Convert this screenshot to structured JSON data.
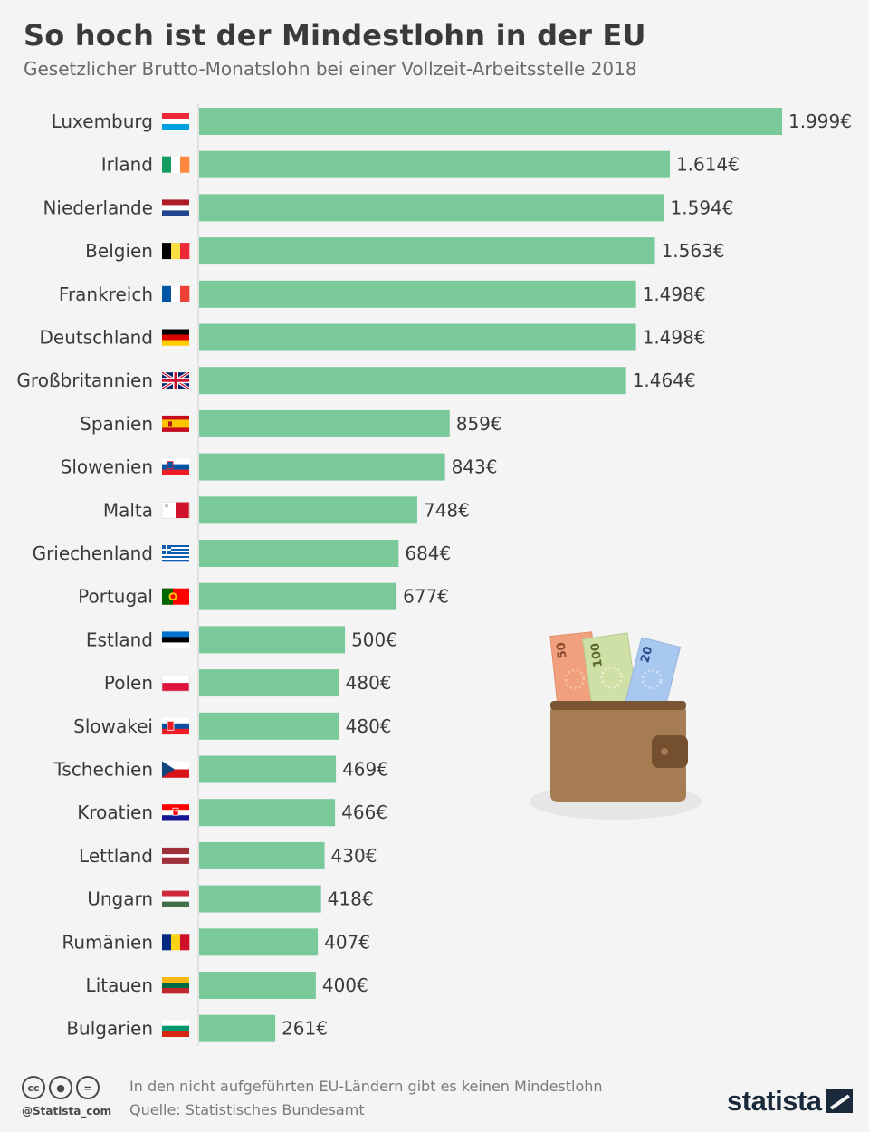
{
  "header": {
    "title": "So hoch ist der Mindestlohn in der EU",
    "subtitle": "Gesetzlicher Brutto-Monatslohn bei einer Vollzeit-Arbeitsstelle 2018"
  },
  "chart_data": {
    "type": "bar",
    "orientation": "horizontal",
    "title": "So hoch ist der Mindestlohn in der EU",
    "subtitle": "Gesetzlicher Brutto-Monatslohn bei einer Vollzeit-Arbeitsstelle 2018",
    "categories": [
      "Luxemburg",
      "Irland",
      "Niederlande",
      "Belgien",
      "Frankreich",
      "Deutschland",
      "Großbritannien",
      "Spanien",
      "Slowenien",
      "Malta",
      "Griechenland",
      "Portugal",
      "Estland",
      "Polen",
      "Slowakei",
      "Tschechien",
      "Kroatien",
      "Lettland",
      "Ungarn",
      "Rumänien",
      "Litauen",
      "Bulgarien"
    ],
    "values": [
      1999,
      1614,
      1594,
      1563,
      1498,
      1498,
      1464,
      859,
      843,
      748,
      684,
      677,
      500,
      480,
      480,
      469,
      466,
      430,
      418,
      407,
      400,
      261
    ],
    "value_labels": [
      "1.999€",
      "1.614€",
      "1.594€",
      "1.563€",
      "1.498€",
      "1.498€",
      "1.464€",
      "859€",
      "843€",
      "748€",
      "684€",
      "677€",
      "500€",
      "480€",
      "480€",
      "469€",
      "466€",
      "430€",
      "418€",
      "407€",
      "400€",
      "261€"
    ],
    "flags": [
      "luxembourg-flag",
      "ireland-flag",
      "netherlands-flag",
      "belgium-flag",
      "france-flag",
      "germany-flag",
      "uk-flag",
      "spain-flag",
      "slovenia-flag",
      "malta-flag",
      "greece-flag",
      "portugal-flag",
      "estonia-flag",
      "poland-flag",
      "slovakia-flag",
      "czechia-flag",
      "croatia-flag",
      "latvia-flag",
      "hungary-flag",
      "romania-flag",
      "lithuania-flag",
      "bulgaria-flag"
    ],
    "xlim": [
      0,
      1999
    ],
    "bar_color": "#79c99b",
    "grid": false
  },
  "illustration": {
    "icon": "wallet-with-banknotes-icon",
    "banknotes": [
      "50",
      "100",
      "20"
    ]
  },
  "footer": {
    "note": "In den nicht aufgeführten EU-Ländern gibt es keinen Mindestlohn",
    "source": "Quelle: Statistisches Bundesamt",
    "handle": "@Statista_com",
    "brand": "statista",
    "license_icons": [
      "cc-icon",
      "by-icon",
      "nd-icon"
    ]
  },
  "colors": {
    "bar": "#79c99b",
    "background": "#f4f4f4",
    "text": "#3a3a3a",
    "brand": "#1a2a3a"
  }
}
